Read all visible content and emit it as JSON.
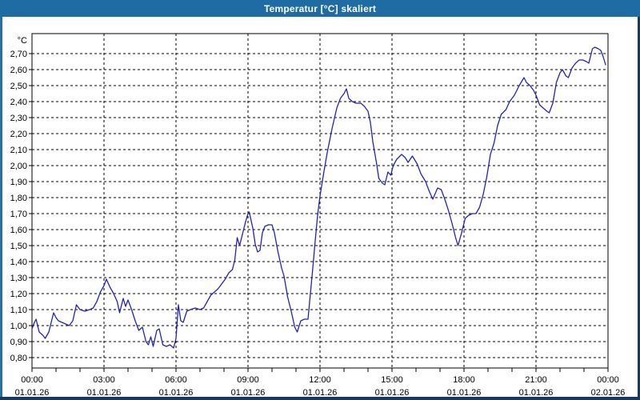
{
  "title": "Temperatur [°C] skaliert",
  "colors": {
    "titlebar_bg": "#1E6CA3",
    "border_light": "#2470A4",
    "border_dark": "#17395F",
    "plot_bg": "#FFFFFF",
    "grid": "#000000",
    "frame": "#000000",
    "text": "#000000",
    "line": "#2222BB"
  },
  "chart_data": {
    "type": "line",
    "title": "Temperatur [°C] skaliert",
    "unit_label": "°C",
    "xlabel": "",
    "ylabel": "°C",
    "grid": "dashed",
    "legend": "none",
    "ylim": [
      0.735,
      2.825
    ],
    "xlim_hours": [
      0,
      24
    ],
    "hours_per_major_tick": 3,
    "ytick_values": [
      0.8,
      0.9,
      1.0,
      1.1,
      1.2,
      1.3,
      1.4,
      1.5,
      1.6,
      1.7,
      1.8,
      1.9,
      2.0,
      2.1,
      2.2,
      2.3,
      2.4,
      2.5,
      2.6,
      2.7
    ],
    "ytick_labels": [
      "0,80",
      "0,90",
      "1,00",
      "1,10",
      "1,20",
      "1,30",
      "1,40",
      "1,50",
      "1,60",
      "1,70",
      "1,80",
      "1,90",
      "2,00",
      "2,10",
      "2,20",
      "2,30",
      "2,40",
      "2,50",
      "2,60",
      "2,70"
    ],
    "xticks": [
      {
        "hour": 0,
        "time": "00:00",
        "date": "01.01.26"
      },
      {
        "hour": 3,
        "time": "03:00",
        "date": "01.01.26"
      },
      {
        "hour": 6,
        "time": "06:00",
        "date": "01.01.26"
      },
      {
        "hour": 9,
        "time": "09:00",
        "date": "01.01.26"
      },
      {
        "hour": 12,
        "time": "12:00",
        "date": "01.01.26"
      },
      {
        "hour": 15,
        "time": "15:00",
        "date": "01.01.26"
      },
      {
        "hour": 18,
        "time": "18:00",
        "date": "01.01.26"
      },
      {
        "hour": 21,
        "time": "21:00",
        "date": "01.01.26"
      },
      {
        "hour": 24,
        "time": "00:00",
        "date": "02.01.26"
      }
    ],
    "series": [
      {
        "name": "Temperatur",
        "color": "#2222BB",
        "points": [
          [
            0.0,
            0.98
          ],
          [
            0.1,
            1.02
          ],
          [
            0.17,
            1.04
          ],
          [
            0.3,
            0.96
          ],
          [
            0.45,
            0.94
          ],
          [
            0.55,
            0.92
          ],
          [
            0.7,
            0.96
          ],
          [
            0.8,
            1.02
          ],
          [
            0.9,
            1.08
          ],
          [
            1.0,
            1.05
          ],
          [
            1.1,
            1.03
          ],
          [
            1.25,
            1.02
          ],
          [
            1.4,
            1.01
          ],
          [
            1.55,
            1.0
          ],
          [
            1.7,
            1.03
          ],
          [
            1.85,
            1.13
          ],
          [
            2.0,
            1.1
          ],
          [
            2.2,
            1.09
          ],
          [
            2.4,
            1.1
          ],
          [
            2.55,
            1.11
          ],
          [
            2.7,
            1.15
          ],
          [
            2.85,
            1.21
          ],
          [
            3.0,
            1.25
          ],
          [
            3.1,
            1.29
          ],
          [
            3.25,
            1.24
          ],
          [
            3.4,
            1.2
          ],
          [
            3.55,
            1.15
          ],
          [
            3.65,
            1.08
          ],
          [
            3.8,
            1.17
          ],
          [
            3.9,
            1.12
          ],
          [
            4.0,
            1.16
          ],
          [
            4.15,
            1.1
          ],
          [
            4.3,
            1.03
          ],
          [
            4.45,
            0.97
          ],
          [
            4.6,
            0.99
          ],
          [
            4.75,
            0.9
          ],
          [
            4.85,
            0.88
          ],
          [
            4.95,
            0.93
          ],
          [
            5.05,
            0.87
          ],
          [
            5.2,
            0.97
          ],
          [
            5.3,
            0.98
          ],
          [
            5.45,
            0.88
          ],
          [
            5.6,
            0.87
          ],
          [
            5.75,
            0.88
          ],
          [
            5.9,
            0.86
          ],
          [
            6.0,
            0.92
          ],
          [
            6.1,
            1.13
          ],
          [
            6.2,
            1.03
          ],
          [
            6.3,
            1.02
          ],
          [
            6.45,
            1.09
          ],
          [
            6.6,
            1.1
          ],
          [
            6.8,
            1.11
          ],
          [
            7.0,
            1.1
          ],
          [
            7.15,
            1.11
          ],
          [
            7.3,
            1.15
          ],
          [
            7.45,
            1.19
          ],
          [
            7.6,
            1.21
          ],
          [
            7.75,
            1.23
          ],
          [
            7.9,
            1.26
          ],
          [
            8.05,
            1.29
          ],
          [
            8.2,
            1.33
          ],
          [
            8.35,
            1.35
          ],
          [
            8.45,
            1.41
          ],
          [
            8.55,
            1.55
          ],
          [
            8.65,
            1.5
          ],
          [
            8.8,
            1.59
          ],
          [
            8.9,
            1.65
          ],
          [
            9.0,
            1.7
          ],
          [
            9.05,
            1.71
          ],
          [
            9.2,
            1.61
          ],
          [
            9.3,
            1.51
          ],
          [
            9.4,
            1.46
          ],
          [
            9.5,
            1.47
          ],
          [
            9.6,
            1.58
          ],
          [
            9.7,
            1.62
          ],
          [
            9.85,
            1.63
          ],
          [
            10.0,
            1.63
          ],
          [
            10.1,
            1.58
          ],
          [
            10.25,
            1.46
          ],
          [
            10.4,
            1.36
          ],
          [
            10.5,
            1.31
          ],
          [
            10.65,
            1.18
          ],
          [
            10.8,
            1.09
          ],
          [
            10.95,
            0.99
          ],
          [
            11.05,
            0.96
          ],
          [
            11.2,
            1.03
          ],
          [
            11.35,
            1.04
          ],
          [
            11.5,
            1.04
          ],
          [
            11.6,
            1.2
          ],
          [
            11.7,
            1.36
          ],
          [
            11.8,
            1.53
          ],
          [
            11.9,
            1.69
          ],
          [
            12.0,
            1.81
          ],
          [
            12.15,
            1.95
          ],
          [
            12.3,
            2.08
          ],
          [
            12.5,
            2.23
          ],
          [
            12.7,
            2.36
          ],
          [
            12.85,
            2.42
          ],
          [
            13.0,
            2.45
          ],
          [
            13.1,
            2.48
          ],
          [
            13.2,
            2.42
          ],
          [
            13.35,
            2.4
          ],
          [
            13.5,
            2.39
          ],
          [
            13.7,
            2.39
          ],
          [
            13.85,
            2.37
          ],
          [
            14.0,
            2.34
          ],
          [
            14.1,
            2.27
          ],
          [
            14.2,
            2.15
          ],
          [
            14.35,
            2.02
          ],
          [
            14.45,
            1.92
          ],
          [
            14.6,
            1.89
          ],
          [
            14.7,
            1.88
          ],
          [
            14.83,
            1.96
          ],
          [
            14.95,
            1.94
          ],
          [
            15.05,
            2.0
          ],
          [
            15.2,
            2.04
          ],
          [
            15.4,
            2.07
          ],
          [
            15.55,
            2.05
          ],
          [
            15.67,
            2.02
          ],
          [
            15.85,
            2.06
          ],
          [
            16.05,
            2.01
          ],
          [
            16.2,
            1.95
          ],
          [
            16.4,
            1.9
          ],
          [
            16.55,
            1.84
          ],
          [
            16.7,
            1.79
          ],
          [
            16.9,
            1.86
          ],
          [
            17.05,
            1.85
          ],
          [
            17.2,
            1.79
          ],
          [
            17.35,
            1.72
          ],
          [
            17.5,
            1.64
          ],
          [
            17.65,
            1.55
          ],
          [
            17.75,
            1.5
          ],
          [
            17.9,
            1.58
          ],
          [
            18.05,
            1.67
          ],
          [
            18.2,
            1.69
          ],
          [
            18.35,
            1.7
          ],
          [
            18.5,
            1.7
          ],
          [
            18.65,
            1.74
          ],
          [
            18.8,
            1.82
          ],
          [
            18.95,
            1.93
          ],
          [
            19.1,
            2.07
          ],
          [
            19.25,
            2.14
          ],
          [
            19.4,
            2.25
          ],
          [
            19.55,
            2.32
          ],
          [
            19.75,
            2.35
          ],
          [
            19.9,
            2.4
          ],
          [
            20.1,
            2.44
          ],
          [
            20.3,
            2.5
          ],
          [
            20.5,
            2.55
          ],
          [
            20.6,
            2.52
          ],
          [
            20.75,
            2.5
          ],
          [
            20.9,
            2.47
          ],
          [
            21.0,
            2.44
          ],
          [
            21.15,
            2.38
          ],
          [
            21.3,
            2.36
          ],
          [
            21.45,
            2.34
          ],
          [
            21.55,
            2.33
          ],
          [
            21.7,
            2.39
          ],
          [
            21.85,
            2.52
          ],
          [
            22.0,
            2.58
          ],
          [
            22.1,
            2.6
          ],
          [
            22.25,
            2.56
          ],
          [
            22.35,
            2.55
          ],
          [
            22.5,
            2.61
          ],
          [
            22.65,
            2.64
          ],
          [
            22.8,
            2.66
          ],
          [
            22.95,
            2.66
          ],
          [
            23.1,
            2.65
          ],
          [
            23.2,
            2.64
          ],
          [
            23.35,
            2.73
          ],
          [
            23.45,
            2.74
          ],
          [
            23.6,
            2.73
          ],
          [
            23.7,
            2.72
          ],
          [
            23.8,
            2.68
          ],
          [
            23.9,
            2.63
          ]
        ]
      }
    ]
  }
}
